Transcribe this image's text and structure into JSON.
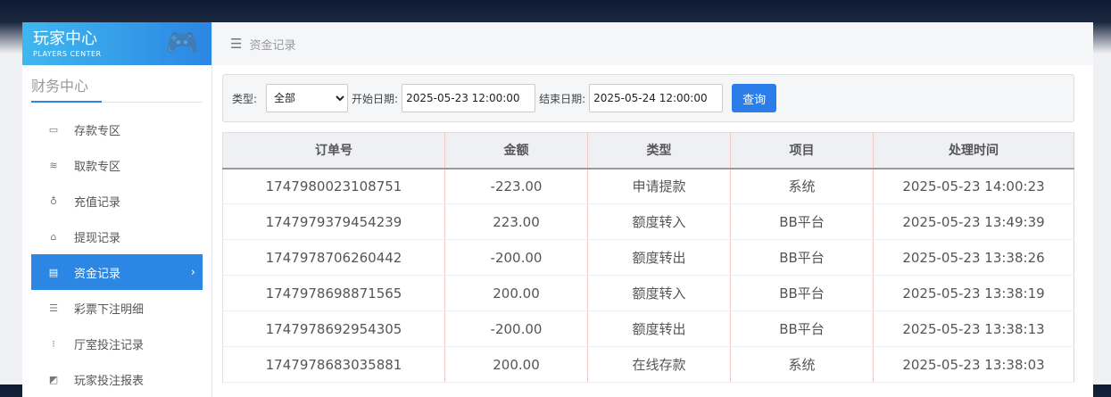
{
  "brand": {
    "title": "玩家中心",
    "subtitle": "PLAYERS CENTER"
  },
  "sidebar": {
    "section": "财务中心",
    "items": [
      {
        "label": "存款专区",
        "icon": "card-icon"
      },
      {
        "label": "取款专区",
        "icon": "cash-icon"
      },
      {
        "label": "充值记录",
        "icon": "money-bag-icon"
      },
      {
        "label": "提现记录",
        "icon": "wallet-icon"
      },
      {
        "label": "资金记录",
        "icon": "funds-icon",
        "active": true
      },
      {
        "label": "彩票下注明细",
        "icon": "list-icon"
      },
      {
        "label": "厅室投注记录",
        "icon": "list-bullets-icon"
      },
      {
        "label": "玩家投注报表",
        "icon": "chart-icon"
      }
    ]
  },
  "header": {
    "title": "资金记录"
  },
  "filter": {
    "type_label": "类型:",
    "type_value": "全部",
    "start_label": "开始日期:",
    "start_value": "2025-05-23 12:00:00",
    "end_label": "结束日期:",
    "end_value": "2025-05-24 12:00:00",
    "query": "查询"
  },
  "table": {
    "columns": [
      "订单号",
      "金额",
      "类型",
      "项目",
      "处理时间"
    ],
    "rows": [
      [
        "1747980023108751",
        "-223.00",
        "申请提款",
        "系统",
        "2025-05-23 14:00:23"
      ],
      [
        "1747979379454239",
        "223.00",
        "额度转入",
        "BB平台",
        "2025-05-23 13:49:39"
      ],
      [
        "1747978706260442",
        "-200.00",
        "额度转出",
        "BB平台",
        "2025-05-23 13:38:26"
      ],
      [
        "1747978698871565",
        "200.00",
        "额度转入",
        "BB平台",
        "2025-05-23 13:38:19"
      ],
      [
        "1747978692954305",
        "-200.00",
        "额度转出",
        "BB平台",
        "2025-05-23 13:38:13"
      ],
      [
        "1747978683035881",
        "200.00",
        "在线存款",
        "系统",
        "2025-05-23 13:38:03"
      ]
    ]
  }
}
